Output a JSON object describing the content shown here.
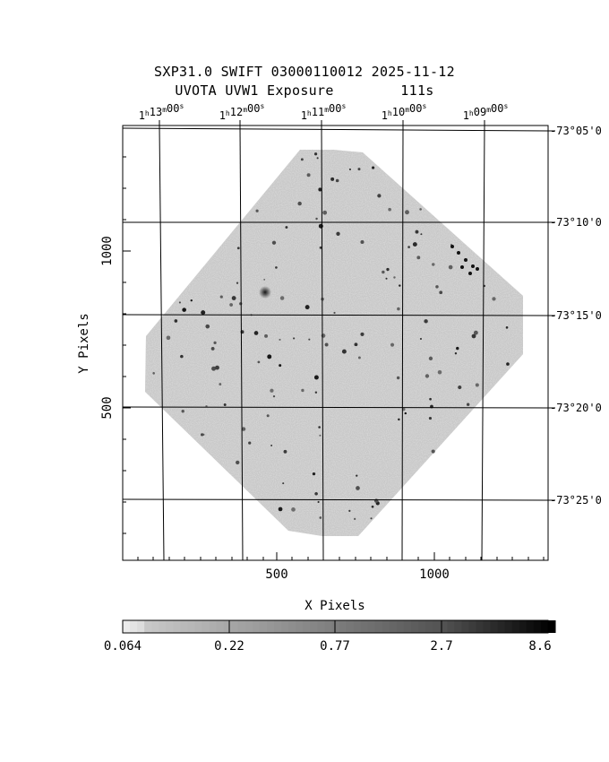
{
  "header": {
    "line1": "SXP31.0 SWIFT 03000110012 2025-11-12",
    "line2": "UVOTA UVW1 Exposure        111s"
  },
  "axes": {
    "xlabel": "X Pixels",
    "ylabel": "Y Pixels",
    "x_ticks": [
      "500",
      "1000"
    ],
    "y_ticks": [
      "500",
      "1000"
    ],
    "ra_ticks": [
      {
        "h": "1",
        "m": "13",
        "s": "00"
      },
      {
        "h": "1",
        "m": "12",
        "s": "00"
      },
      {
        "h": "1",
        "m": "11",
        "s": "00"
      },
      {
        "h": "1",
        "m": "10",
        "s": "00"
      },
      {
        "h": "1",
        "m": "09",
        "s": "00"
      }
    ],
    "dec_ticks": [
      "-73°05'0",
      "-73°10'0",
      "-73°15'0",
      "-73°20'0",
      "-73°25'0"
    ]
  },
  "colorbar": {
    "labels": [
      "0.064",
      "0.22",
      "0.77",
      "2.7",
      "8.6"
    ]
  },
  "colors": {
    "background": "#ffffff",
    "frame": "#000000",
    "image_gray": "#a9a9a9"
  }
}
